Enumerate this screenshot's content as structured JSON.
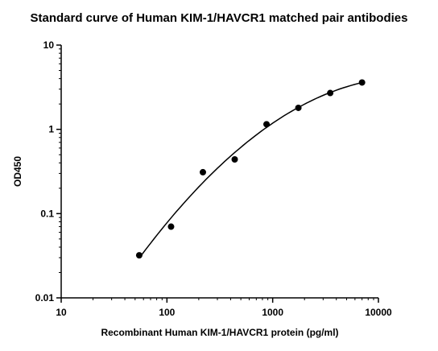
{
  "chart_data": {
    "type": "scatter",
    "title": "Standard curve of Human KIM-1/HAVCR1 matched pair antibodies",
    "xlabel": "Recombinant Human KIM-1/HAVCR1 protein (pg/ml)",
    "ylabel": "OD450",
    "x_scale": "log",
    "y_scale": "log",
    "xlim": [
      10,
      10000
    ],
    "ylim": [
      0.01,
      10
    ],
    "x_ticks": [
      "10",
      "100",
      "1000",
      "10000"
    ],
    "y_ticks": [
      "10",
      "1",
      "0.1",
      "0.01"
    ],
    "grid": false,
    "points": [
      {
        "x": 54.7,
        "y": 0.032
      },
      {
        "x": 109.4,
        "y": 0.07
      },
      {
        "x": 218.8,
        "y": 0.31
      },
      {
        "x": 437.5,
        "y": 0.44
      },
      {
        "x": 875,
        "y": 1.15
      },
      {
        "x": 1750,
        "y": 1.8
      },
      {
        "x": 3500,
        "y": 2.7
      },
      {
        "x": 7000,
        "y": 3.6
      }
    ],
    "fit_curve": true
  }
}
